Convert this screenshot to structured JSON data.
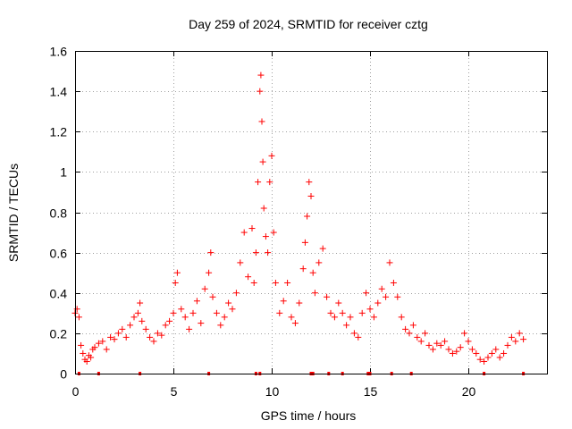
{
  "chart_data": {
    "type": "scatter",
    "title": "Day 259 of 2024, SRMTID for receiver cztg",
    "xlabel": "GPS time / hours",
    "ylabel": "SRMTID / TECUs",
    "xlim": [
      0,
      24
    ],
    "ylim": [
      0,
      1.6
    ],
    "xticks": [
      0,
      5,
      10,
      15,
      20
    ],
    "xtick_labels": [
      "0",
      "5",
      "10",
      "15",
      "20"
    ],
    "yticks": [
      0,
      0.2,
      0.4,
      0.6,
      0.8,
      1.0,
      1.2,
      1.4,
      1.6
    ],
    "ytick_labels": [
      "0",
      "0.2",
      "0.4",
      "0.6",
      "0.8",
      "1",
      "1.2",
      "1.4",
      "1.6"
    ],
    "grid": true,
    "marker": "+",
    "color": "#ff0000",
    "series": [
      {
        "name": "SRMTID",
        "x": [
          0.0,
          0.1,
          0.2,
          0.3,
          0.4,
          0.5,
          0.6,
          0.7,
          0.8,
          0.9,
          1.0,
          1.2,
          1.4,
          1.6,
          1.8,
          2.0,
          2.2,
          2.4,
          2.6,
          2.8,
          3.0,
          3.2,
          3.3,
          3.4,
          3.6,
          3.8,
          4.0,
          4.2,
          4.4,
          4.6,
          4.8,
          5.0,
          5.1,
          5.2,
          5.4,
          5.6,
          5.8,
          6.0,
          6.2,
          6.4,
          6.6,
          6.8,
          6.9,
          7.0,
          7.2,
          7.4,
          7.6,
          7.8,
          8.0,
          8.2,
          8.4,
          8.6,
          8.8,
          9.0,
          9.1,
          9.2,
          9.3,
          9.4,
          9.45,
          9.5,
          9.55,
          9.6,
          9.7,
          9.8,
          9.9,
          10.0,
          10.1,
          10.2,
          10.4,
          10.6,
          10.8,
          11.0,
          11.2,
          11.4,
          11.6,
          11.7,
          11.8,
          11.9,
          12.0,
          12.1,
          12.2,
          12.4,
          12.6,
          12.8,
          13.0,
          13.2,
          13.4,
          13.6,
          13.8,
          14.0,
          14.2,
          14.4,
          14.6,
          14.8,
          15.0,
          15.2,
          15.4,
          15.6,
          15.8,
          16.0,
          16.2,
          16.4,
          16.6,
          16.8,
          17.0,
          17.2,
          17.4,
          17.6,
          17.8,
          18.0,
          18.2,
          18.4,
          18.6,
          18.8,
          19.0,
          19.2,
          19.4,
          19.6,
          19.8,
          20.0,
          20.2,
          20.4,
          20.6,
          20.8,
          21.0,
          21.2,
          21.4,
          21.6,
          21.8,
          22.0,
          22.2,
          22.4,
          22.6,
          22.8
        ],
        "y": [
          0.3,
          0.32,
          0.28,
          0.14,
          0.1,
          0.07,
          0.06,
          0.09,
          0.08,
          0.12,
          0.13,
          0.15,
          0.16,
          0.12,
          0.18,
          0.17,
          0.2,
          0.22,
          0.18,
          0.24,
          0.28,
          0.3,
          0.35,
          0.26,
          0.22,
          0.18,
          0.16,
          0.2,
          0.19,
          0.24,
          0.26,
          0.3,
          0.45,
          0.5,
          0.32,
          0.28,
          0.22,
          0.3,
          0.36,
          0.25,
          0.42,
          0.5,
          0.6,
          0.38,
          0.3,
          0.24,
          0.28,
          0.35,
          0.32,
          0.4,
          0.55,
          0.7,
          0.48,
          0.72,
          0.45,
          0.6,
          0.95,
          1.4,
          1.48,
          1.25,
          1.05,
          0.82,
          0.68,
          0.6,
          0.95,
          1.08,
          0.7,
          0.45,
          0.3,
          0.36,
          0.45,
          0.28,
          0.25,
          0.35,
          0.52,
          0.65,
          0.78,
          0.95,
          0.88,
          0.5,
          0.4,
          0.55,
          0.62,
          0.38,
          0.3,
          0.28,
          0.35,
          0.3,
          0.24,
          0.28,
          0.2,
          0.18,
          0.3,
          0.4,
          0.32,
          0.28,
          0.35,
          0.42,
          0.38,
          0.55,
          0.45,
          0.38,
          0.28,
          0.22,
          0.2,
          0.24,
          0.18,
          0.16,
          0.2,
          0.14,
          0.12,
          0.15,
          0.14,
          0.16,
          0.12,
          0.1,
          0.11,
          0.13,
          0.2,
          0.16,
          0.12,
          0.1,
          0.07,
          0.06,
          0.08,
          0.1,
          0.12,
          0.08,
          0.1,
          0.14,
          0.18,
          0.16,
          0.2,
          0.17
        ]
      }
    ],
    "baseline_markers_x": [
      0.2,
      1.2,
      3.3,
      6.8,
      9.2,
      9.4,
      12.0,
      12.1,
      12.9,
      13.6,
      14.9,
      15.0,
      16.1,
      17.1,
      20.8,
      22.8
    ]
  }
}
